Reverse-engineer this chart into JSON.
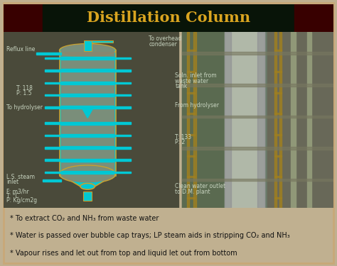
{
  "title": "Distillation Column",
  "title_color": "#DAA520",
  "title_bg_left": "#3a0000",
  "title_bg_mid": "#0a1a08",
  "title_bg_right": "#3a0000",
  "outer_border": "#c8a878",
  "main_bg": "#585848",
  "diagram_bg": "#4a4a3a",
  "bottom_bg": "#f0ecc8",
  "column_fill": "#00c8d4",
  "column_outline": "#c8a030",
  "tray_color": "#00b8c8",
  "bubble_fill": "#888870",
  "pipe_color": "#00c8d4",
  "label_color": "#c8d4c0",
  "photo_bg": "#788878",
  "photo_col1": "#9aaa88",
  "photo_col2": "#b8b898",
  "photo_col3": "#787868",
  "photo_yellow": "#c8a020",
  "bottom_text_color": "#111111",
  "bullet_lines": [
    "* To extract CO₂ and NH₃ from waste water",
    "* Water is passed over bubble cap trays; LP steam aids in stripping CO₂ and NH₃",
    "* Vapour rises and let out from top and liquid let out from bottom"
  ]
}
